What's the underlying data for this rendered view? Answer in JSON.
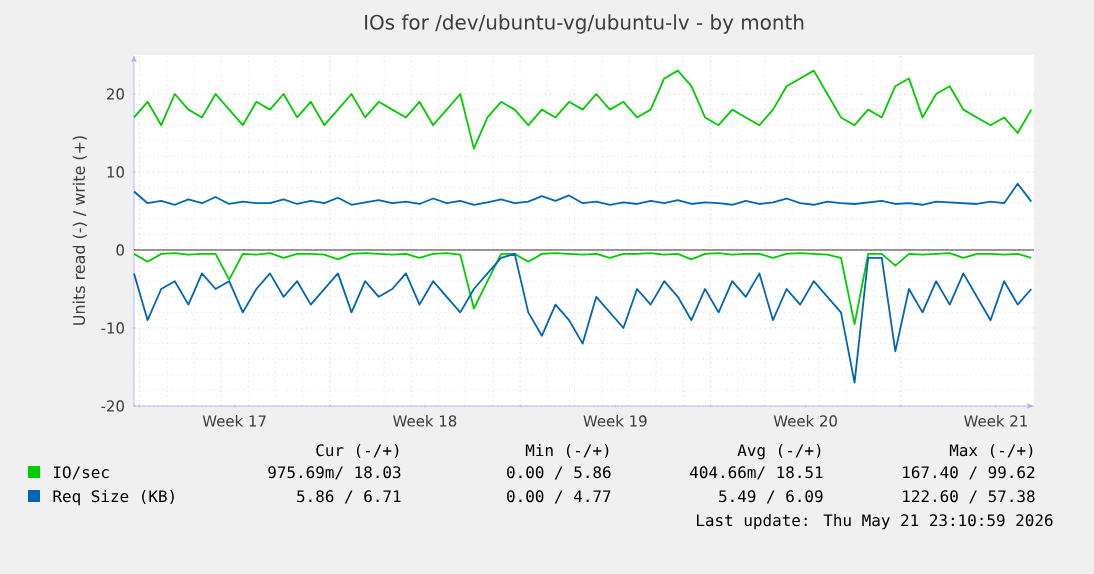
{
  "chart_data": {
    "type": "line",
    "title": "IOs for /dev/ubuntu-vg/ubuntu-lv - by month",
    "ylabel": "Units read (-) / write (+)",
    "x": [
      "2026-04-19T19:12",
      "2026-04-20T07:12",
      "2026-04-20T19:12",
      "2026-04-21T07:12",
      "2026-04-21T19:12",
      "2026-04-22T07:12",
      "2026-04-22T19:12",
      "2026-04-23T07:12",
      "2026-04-23T19:12",
      "2026-04-24T07:12",
      "2026-04-24T19:12",
      "2026-04-25T07:12",
      "2026-04-25T19:12",
      "2026-04-26T07:12",
      "2026-04-26T19:12",
      "2026-04-27T07:12",
      "2026-04-27T19:12",
      "2026-04-28T07:12",
      "2026-04-28T19:12",
      "2026-04-29T07:12",
      "2026-04-29T19:12",
      "2026-04-30T07:12",
      "2026-04-30T19:12",
      "2026-05-01T07:12",
      "2026-05-01T19:12",
      "2026-05-02T07:12",
      "2026-05-02T19:12",
      "2026-05-03T07:12",
      "2026-05-03T19:12",
      "2026-05-04T07:12",
      "2026-05-04T19:12",
      "2026-05-05T07:12",
      "2026-05-05T19:12",
      "2026-05-06T07:12",
      "2026-05-06T19:12",
      "2026-05-07T07:12",
      "2026-05-07T19:12",
      "2026-05-08T07:12",
      "2026-05-08T19:12",
      "2026-05-09T07:12",
      "2026-05-09T19:12",
      "2026-05-10T07:12",
      "2026-05-10T19:12",
      "2026-05-11T07:12",
      "2026-05-11T19:12",
      "2026-05-12T07:12",
      "2026-05-12T19:12",
      "2026-05-13T07:12",
      "2026-05-13T19:12",
      "2026-05-14T07:12",
      "2026-05-14T19:12",
      "2026-05-15T07:12",
      "2026-05-15T19:12",
      "2026-05-16T07:12",
      "2026-05-16T19:12",
      "2026-05-17T07:12",
      "2026-05-17T19:12",
      "2026-05-18T07:12",
      "2026-05-18T19:12",
      "2026-05-19T07:12",
      "2026-05-19T19:12",
      "2026-05-20T07:12",
      "2026-05-20T19:12",
      "2026-05-21T07:12",
      "2026-05-21T19:12",
      "2026-05-22T07:12",
      "2026-05-22T19:12"
    ],
    "series": [
      {
        "color": "#00cc00",
        "values": [
          -0.5,
          -1.5,
          -0.5,
          -0.4,
          -0.6,
          -0.5,
          -0.5,
          -3.8,
          -0.5,
          -0.6,
          -0.4,
          -1,
          -0.5,
          -0.5,
          -0.6,
          -1.2,
          -0.5,
          -0.4,
          -0.5,
          -0.6,
          -0.5,
          -1,
          -0.5,
          -0.4,
          -0.6,
          -7.5,
          -4,
          -0.5,
          -0.5,
          -1.5,
          -0.5,
          -0.4,
          -0.5,
          -0.6,
          -0.5,
          -1,
          -0.5,
          -0.5,
          -0.4,
          -0.6,
          -0.5,
          -1.2,
          -0.5,
          -0.4,
          -0.6,
          -0.5,
          -0.5,
          -1,
          -0.5,
          -0.4,
          -0.5,
          -0.6,
          -1,
          -9.5,
          -0.5,
          -0.5,
          -2,
          -0.5,
          -0.6,
          -0.5,
          -0.4,
          -1,
          -0.5,
          -0.5,
          -0.6,
          -0.5,
          -1
        ]
      },
      {
        "name": "IO/sec",
        "color": "#00cc00",
        "values": [
          17,
          19,
          16,
          20,
          18,
          17,
          20,
          18,
          16,
          19,
          18,
          20,
          17,
          19,
          16,
          18,
          20,
          17,
          19,
          18,
          17,
          19,
          16,
          18,
          20,
          13,
          17,
          19,
          18,
          16,
          18,
          17,
          19,
          18,
          20,
          18,
          19,
          17,
          18,
          22,
          23,
          21,
          17,
          16,
          18,
          17,
          16,
          18,
          21,
          22,
          23,
          20,
          17,
          16,
          18,
          17,
          21,
          22,
          17,
          20,
          21,
          18,
          17,
          16,
          17,
          15,
          18
        ]
      },
      {
        "color": "#0066b3",
        "values": [
          -3,
          -9,
          -5,
          -4,
          -7,
          -3,
          -5,
          -4,
          -8,
          -5,
          -3,
          -6,
          -4,
          -7,
          -5,
          -3,
          -8,
          -4,
          -6,
          -5,
          -3,
          -7,
          -4,
          -6,
          -8,
          -5,
          -3,
          -1,
          -0.5,
          -8,
          -11,
          -7,
          -9,
          -12,
          -6,
          -8,
          -10,
          -5,
          -7,
          -4,
          -6,
          -9,
          -5,
          -8,
          -4,
          -6,
          -3,
          -9,
          -5,
          -7,
          -4,
          -6,
          -8,
          -17,
          -1,
          -1,
          -13,
          -5,
          -8,
          -4,
          -7,
          -3,
          -6,
          -9,
          -4,
          -7,
          -5
        ]
      },
      {
        "name": "Req Size (KB)",
        "color": "#0066b3",
        "values": [
          7.5,
          6,
          6.3,
          5.8,
          6.5,
          6,
          6.8,
          5.9,
          6.2,
          6,
          6,
          6.5,
          5.9,
          6.3,
          6,
          6.7,
          5.8,
          6.1,
          6.4,
          6,
          6.2,
          5.9,
          6.6,
          6,
          6.3,
          5.8,
          6.1,
          6.5,
          6,
          6.2,
          6.9,
          6.3,
          7,
          6,
          6.2,
          5.8,
          6.1,
          5.9,
          6.3,
          6,
          6.4,
          5.9,
          6.1,
          6,
          5.8,
          6.3,
          5.9,
          6.1,
          6.6,
          6,
          5.8,
          6.2,
          6,
          5.9,
          6.1,
          6.3,
          5.9,
          6,
          5.8,
          6.2,
          6.1,
          6,
          5.9,
          6.2,
          6,
          8.5,
          6.2
        ]
      }
    ],
    "xlim": [
      "2026-04-19T19:12",
      "2026-05-22T21:36"
    ],
    "xticks": [
      {
        "value": "2026-04-20",
        "label": null
      },
      {
        "value": "2026-04-23T12:00",
        "label": "Week 17"
      },
      {
        "value": "2026-04-27",
        "label": null
      },
      {
        "value": "2026-04-30T12:00",
        "label": "Week 18"
      },
      {
        "value": "2026-05-04",
        "label": null
      },
      {
        "value": "2026-05-07T12:00",
        "label": "Week 19"
      },
      {
        "value": "2026-05-11",
        "label": null
      },
      {
        "value": "2026-05-14T12:00",
        "label": "Week 20"
      },
      {
        "value": "2026-05-18",
        "label": null
      },
      {
        "value": "2026-05-21T12:00",
        "label": "Week 21"
      }
    ],
    "ylim": [
      -20,
      25
    ],
    "yticks": [
      -20,
      -10,
      0,
      10,
      20
    ],
    "ref_lines": [
      {
        "axis": "y",
        "value": 0,
        "color": "#000000"
      }
    ],
    "grid": true,
    "legend": "bottom",
    "annotations": [
      "Cur (-/+)",
      "Min (-/+)",
      "Avg (-/+)",
      "Max (-/+)",
      "975.69m/ 18.03",
      "0.00 / 5.86",
      "404.66m/ 18.51",
      "167.40 / 99.62",
      "5.86 / 6.71",
      "0.00 / 4.77",
      "5.49 / 6.09",
      "122.60 / 57.38",
      "Last update: Thu May 21 23:10:59 2026"
    ]
  }
}
